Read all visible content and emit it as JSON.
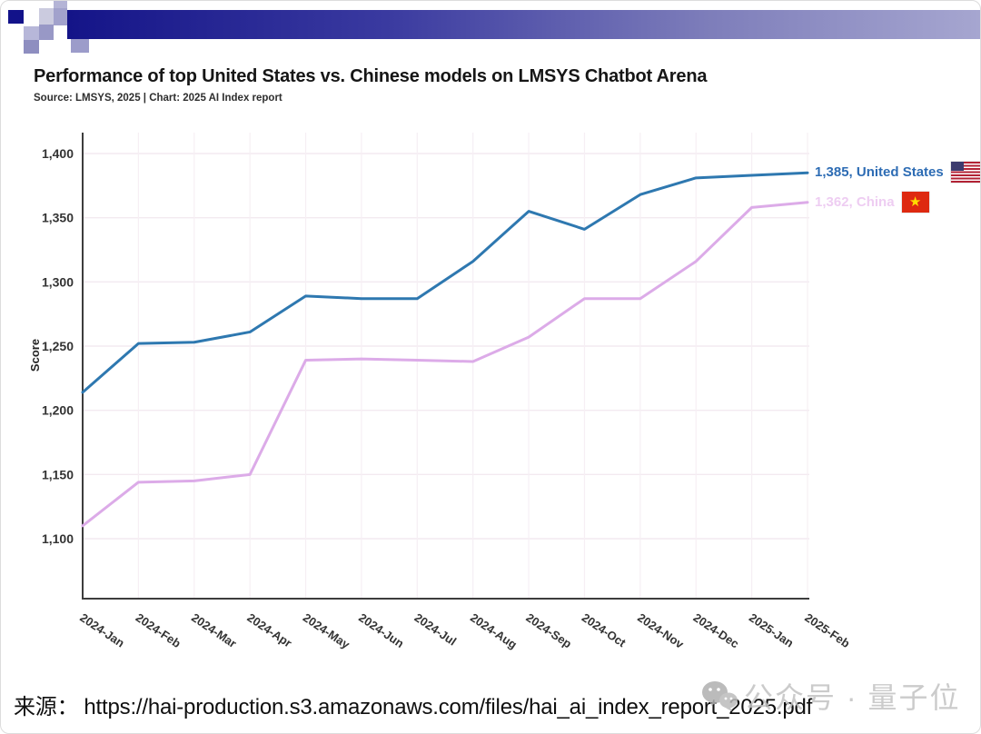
{
  "chart_data": {
    "type": "line",
    "title": "Performance of top United States vs. Chinese models on LMSYS Chatbot Arena",
    "subtitle": "Source: LMSYS, 2025 | Chart: 2025 AI Index report",
    "ylabel": "Score",
    "xlabel": "",
    "grid": true,
    "legend_position": "right-of-line-ends",
    "ylim": [
      1053,
      1416
    ],
    "yticks": [
      1100,
      1150,
      1200,
      1250,
      1300,
      1350,
      1400
    ],
    "x": [
      "2024-Jan",
      "2024-Feb",
      "2024-Mar",
      "2024-Apr",
      "2024-May",
      "2024-Jun",
      "2024-Jul",
      "2024-Aug",
      "2024-Sep",
      "2024-Oct",
      "2024-Nov",
      "2024-Dec",
      "2025-Jan",
      "2025-Feb"
    ],
    "series": [
      {
        "name": "United States",
        "label": "1,385, United States",
        "final_value": 1385,
        "color": "#2E78B0",
        "label_color": "#2D6CB4",
        "flag": "us",
        "values": [
          1214,
          1252,
          1253,
          1261,
          1289,
          1287,
          1287,
          1316,
          1355,
          1341,
          1368,
          1381,
          1383,
          1385
        ]
      },
      {
        "name": "China",
        "label": "1,362, China",
        "final_value": 1362,
        "color": "#DCABE8",
        "label_color": "#EECDF2",
        "flag": "cn",
        "values": [
          1110,
          1144,
          1145,
          1150,
          1239,
          1240,
          1239,
          1238,
          1257,
          1287,
          1287,
          1316,
          1358,
          1362
        ]
      }
    ]
  },
  "footer": {
    "source_prefix": "来源：",
    "source_url": "https://hai-production.s3.amazonaws.com/files/hai_ai_index_report_2025.pdf",
    "watermark_text": "公众号 · 量子位"
  },
  "icons": {
    "china_star": "★"
  }
}
